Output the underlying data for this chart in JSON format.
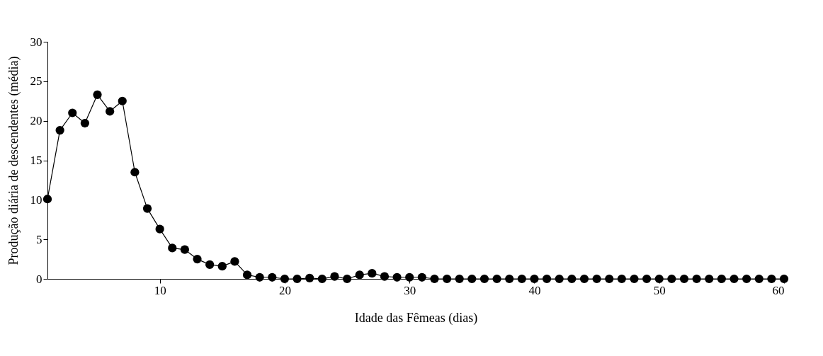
{
  "chart_data": {
    "type": "line",
    "xlabel": "Idade das Fêmeas (dias)",
    "ylabel": "Produção diária de descendentes (média)",
    "x": [
      1,
      2,
      3,
      4,
      5,
      6,
      7,
      8,
      9,
      10,
      11,
      12,
      13,
      14,
      15,
      16,
      17,
      18,
      19,
      20,
      21,
      22,
      23,
      24,
      25,
      26,
      27,
      28,
      29,
      30,
      31,
      32,
      33,
      34,
      35,
      36,
      37,
      38,
      39,
      40,
      41,
      42,
      43,
      44,
      45,
      46,
      47,
      48,
      49,
      50,
      51,
      52,
      53,
      54,
      55,
      56,
      57,
      58,
      59,
      60
    ],
    "series": [
      {
        "color": "#000000",
        "values": [
          10.1,
          18.8,
          21.0,
          19.7,
          23.3,
          21.2,
          22.5,
          13.5,
          8.9,
          6.3,
          3.9,
          3.7,
          2.5,
          1.8,
          1.6,
          2.2,
          0.5,
          0.2,
          0.2,
          0,
          0,
          0.1,
          0,
          0.3,
          0,
          0.5,
          0.7,
          0.3,
          0.2,
          0.2,
          0.2,
          0,
          0,
          0,
          0,
          0,
          0,
          0,
          0,
          0,
          0,
          0,
          0,
          0,
          0,
          0,
          0,
          0,
          0,
          0,
          0,
          0,
          0,
          0,
          0,
          0,
          0,
          0,
          0,
          0
        ]
      }
    ],
    "xlim": [
      1,
      60
    ],
    "xticks": [
      10,
      20,
      30,
      40,
      50,
      60
    ],
    "ylim": [
      0,
      30
    ],
    "yticks": [
      0,
      5,
      10,
      15,
      20,
      25,
      30
    ],
    "grid": false,
    "legend": false,
    "marker": "circle",
    "line_style": "solid"
  }
}
